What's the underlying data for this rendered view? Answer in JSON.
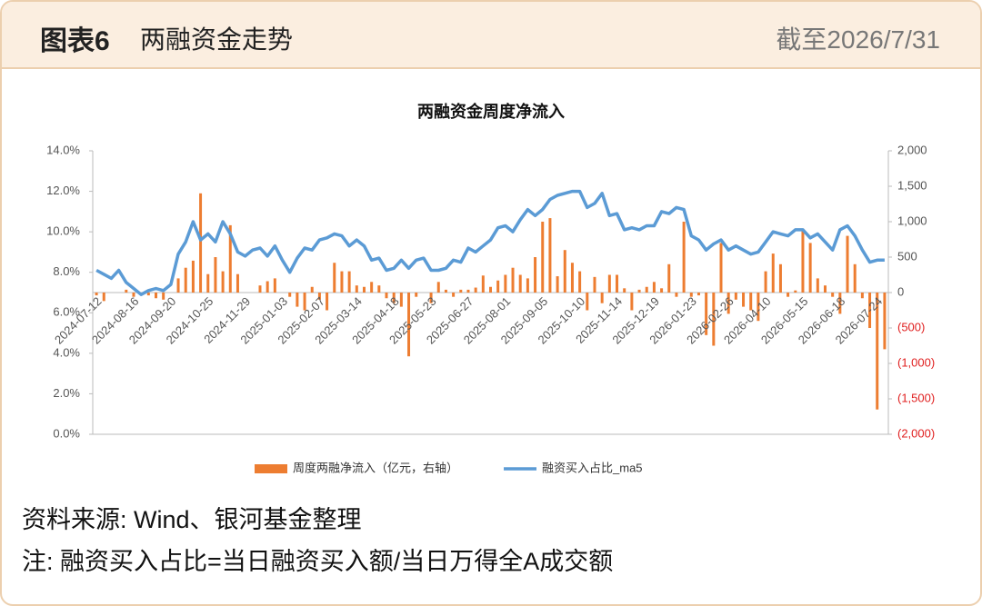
{
  "header": {
    "title": "图表6",
    "subtitle": "两融资金走势",
    "date": "截至2026/7/31"
  },
  "chart_data": {
    "type": "bar-line",
    "title": "两融资金周度净流入",
    "categories": [
      "2024-07-12",
      null,
      null,
      null,
      null,
      "2024-08-16",
      null,
      null,
      null,
      null,
      "2024-09-20",
      null,
      null,
      null,
      null,
      "2024-10-25",
      null,
      null,
      null,
      null,
      "2024-11-29",
      null,
      null,
      null,
      null,
      "2025-01-03",
      null,
      null,
      null,
      null,
      "2025-02-07",
      null,
      null,
      null,
      null,
      "2025-03-14",
      null,
      null,
      null,
      null,
      "2025-04-18",
      null,
      null,
      null,
      null,
      "2025-05-23",
      null,
      null,
      null,
      null,
      "2025-06-27",
      null,
      null,
      null,
      null,
      "2025-08-01",
      null,
      null,
      null,
      null,
      "2025-09-05",
      null,
      null,
      null,
      null,
      "2025-10-10",
      null,
      null,
      null,
      null,
      "2025-11-14",
      null,
      null,
      null,
      null,
      "2025-12-19",
      null,
      null,
      null,
      null,
      "2026-01-23",
      null,
      null,
      null,
      null,
      "2026-02-26",
      null,
      null,
      null,
      null,
      "2026-04-10",
      null,
      null,
      null,
      null,
      "2026-05-15",
      null,
      null,
      null,
      null,
      "2026-06-18",
      null,
      null,
      null,
      null,
      "2026-07-24",
      null
    ],
    "series": [
      {
        "name": "周度两融净流入（亿元，右轴）",
        "type": "bar",
        "axis": "y2",
        "color": "#ed7d31",
        "values": [
          -40,
          -120,
          0,
          0,
          40,
          -60,
          -30,
          -40,
          -80,
          -100,
          0,
          200,
          350,
          450,
          1400,
          260,
          500,
          300,
          950,
          260,
          0,
          0,
          100,
          160,
          200,
          0,
          -60,
          -200,
          -250,
          80,
          -100,
          -250,
          420,
          300,
          300,
          100,
          80,
          150,
          100,
          -80,
          -150,
          -200,
          -900,
          -60,
          0,
          -150,
          150,
          40,
          -60,
          40,
          40,
          70,
          240,
          80,
          170,
          250,
          350,
          250,
          200,
          500,
          1000,
          1050,
          230,
          600,
          420,
          300,
          -250,
          220,
          -150,
          250,
          250,
          60,
          -250,
          40,
          80,
          150,
          60,
          400,
          -60,
          1000,
          -60,
          -40,
          -600,
          -750,
          700,
          -300,
          -100,
          -200,
          -250,
          -400,
          300,
          550,
          400,
          -60,
          30,
          900,
          700,
          200,
          100,
          -60,
          -300,
          800,
          400,
          -80,
          -500,
          -1650,
          -800
        ]
      },
      {
        "name": "融资买入占比_ma5",
        "type": "line",
        "axis": "y",
        "color": "#5b9bd5",
        "values": [
          8.1,
          7.9,
          7.7,
          8.1,
          7.5,
          7.2,
          6.9,
          7.1,
          7.2,
          7.1,
          7.4,
          8.9,
          9.5,
          10.5,
          9.6,
          9.9,
          9.5,
          10.5,
          9.9,
          9.0,
          8.8,
          9.1,
          9.2,
          8.8,
          9.3,
          8.6,
          8.0,
          8.7,
          9.2,
          9.1,
          9.6,
          9.7,
          9.9,
          9.8,
          9.3,
          9.6,
          9.3,
          8.6,
          8.7,
          8.1,
          8.2,
          8.6,
          8.2,
          8.6,
          8.7,
          8.1,
          8.1,
          8.2,
          8.6,
          8.5,
          9.2,
          9.0,
          9.3,
          9.6,
          10.2,
          10.3,
          10.0,
          10.6,
          11.1,
          10.8,
          11.1,
          11.6,
          11.8,
          11.9,
          12.0,
          12.0,
          11.2,
          11.4,
          11.9,
          10.8,
          10.9,
          10.1,
          10.2,
          10.1,
          10.3,
          10.3,
          11.0,
          10.9,
          11.2,
          11.1,
          9.8,
          9.6,
          9.1,
          9.4,
          9.6,
          9.1,
          9.3,
          9.1,
          8.9,
          9.0,
          9.5,
          10.0,
          9.9,
          9.8,
          10.1,
          10.1,
          9.7,
          9.9,
          9.5,
          9.1,
          10.1,
          10.3,
          9.8,
          9.1,
          8.5,
          8.6,
          8.6
        ]
      }
    ],
    "ylim": [
      0,
      14
    ],
    "yticks": [
      {
        "value": 0,
        "label": "0.0%"
      },
      {
        "value": 2,
        "label": "2.0%"
      },
      {
        "value": 4,
        "label": "4.0%"
      },
      {
        "value": 6,
        "label": "6.0%"
      },
      {
        "value": 8,
        "label": "8.0%"
      },
      {
        "value": 10,
        "label": "10.0%"
      },
      {
        "value": 12,
        "label": "12.0%"
      },
      {
        "value": 14,
        "label": "14.0%"
      }
    ],
    "y2lim": [
      -2000,
      2000
    ],
    "y2ticks": [
      {
        "value": -2000,
        "label": "(2,000)"
      },
      {
        "value": -1500,
        "label": "(1,500)"
      },
      {
        "value": -1000,
        "label": "(1,000)"
      },
      {
        "value": -500,
        "label": "(500)"
      },
      0,
      500,
      {
        "value": 1000,
        "label": "1,000"
      },
      {
        "value": 1500,
        "label": "1,500"
      },
      {
        "value": 2000,
        "label": "2,000"
      }
    ],
    "y2_negative_color": "#e02020",
    "grid": false,
    "legend": "bottom"
  },
  "footer": {
    "source": "资料来源: Wind、银河基金整理",
    "note": "注: 融资买入占比=当日融资买入额/当日万得全A成交额"
  }
}
